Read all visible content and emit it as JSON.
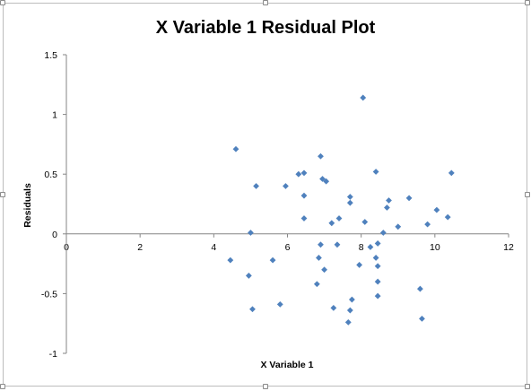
{
  "chart_data": {
    "type": "scatter",
    "title": "X Variable 1  Residual Plot",
    "xlabel": "X Variable 1",
    "ylabel": "Residuals",
    "xlim": [
      0,
      12
    ],
    "ylim": [
      -1,
      1.5
    ],
    "x_ticks": [
      0,
      2,
      4,
      6,
      8,
      10,
      12
    ],
    "y_ticks": [
      -1,
      -0.5,
      0,
      0.5,
      1,
      1.5
    ],
    "x_tick_labels": [
      "0",
      "2",
      "4",
      "6",
      "8",
      "10",
      "12"
    ],
    "y_tick_labels": [
      "-1",
      "-0.5",
      "0",
      "0.5",
      "1",
      "1.5"
    ],
    "grid": false,
    "legend": "none",
    "marker_color": "#4f81bd",
    "series": [
      {
        "points": [
          [
            4.6,
            0.71
          ],
          [
            5.15,
            0.4
          ],
          [
            4.45,
            -0.22
          ],
          [
            4.95,
            -0.35
          ],
          [
            5.0,
            0.01
          ],
          [
            5.05,
            -0.63
          ],
          [
            5.6,
            -0.22
          ],
          [
            5.8,
            -0.59
          ],
          [
            5.95,
            0.4
          ],
          [
            6.3,
            0.5
          ],
          [
            6.45,
            0.51
          ],
          [
            6.45,
            0.32
          ],
          [
            6.45,
            0.13
          ],
          [
            6.8,
            -0.42
          ],
          [
            6.85,
            -0.2
          ],
          [
            6.9,
            0.65
          ],
          [
            6.9,
            -0.09
          ],
          [
            6.95,
            0.46
          ],
          [
            7.0,
            -0.3
          ],
          [
            7.05,
            0.44
          ],
          [
            7.2,
            0.09
          ],
          [
            7.25,
            -0.62
          ],
          [
            7.35,
            -0.09
          ],
          [
            7.4,
            0.13
          ],
          [
            7.65,
            -0.74
          ],
          [
            7.7,
            -0.64
          ],
          [
            7.7,
            0.31
          ],
          [
            7.7,
            0.26
          ],
          [
            7.75,
            -0.55
          ],
          [
            7.95,
            -0.26
          ],
          [
            8.05,
            1.14
          ],
          [
            8.1,
            0.1
          ],
          [
            8.25,
            -0.11
          ],
          [
            8.4,
            0.52
          ],
          [
            8.4,
            -0.2
          ],
          [
            8.45,
            -0.08
          ],
          [
            8.45,
            -0.27
          ],
          [
            8.45,
            -0.4
          ],
          [
            8.45,
            -0.52
          ],
          [
            8.6,
            0.01
          ],
          [
            8.7,
            0.22
          ],
          [
            8.75,
            0.28
          ],
          [
            9.0,
            0.06
          ],
          [
            9.3,
            0.3
          ],
          [
            9.6,
            -0.46
          ],
          [
            9.65,
            -0.71
          ],
          [
            9.8,
            0.08
          ],
          [
            10.05,
            0.2
          ],
          [
            10.35,
            0.14
          ],
          [
            10.45,
            0.51
          ]
        ]
      }
    ]
  }
}
